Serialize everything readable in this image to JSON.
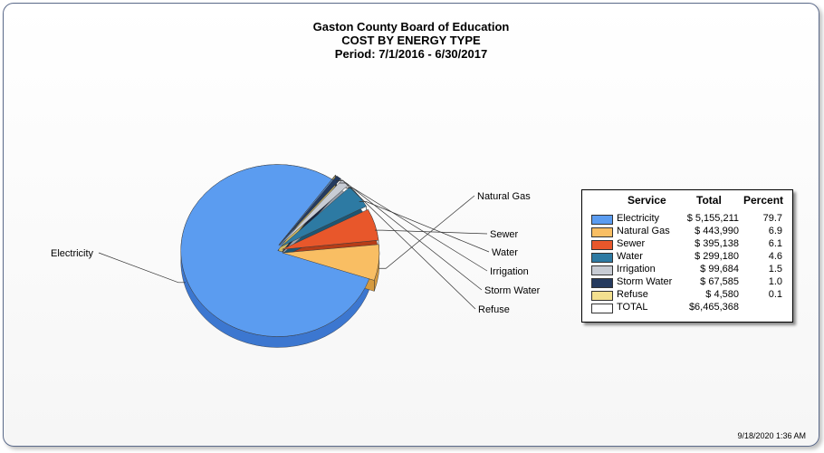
{
  "chart_data": {
    "type": "pie",
    "title": "Gaston County Board of Education",
    "subtitle": "COST BY ENERGY TYPE",
    "period": "Period: 7/1/2016 - 6/30/2017",
    "legend": {
      "placement": "right",
      "headers": {
        "service": "Service",
        "total": "Total",
        "percent": "Percent"
      }
    },
    "slices": [
      {
        "label": "Electricity",
        "total": "$ 5,155,211",
        "value": 5155211,
        "percent": "79.7",
        "color": "#5b9cf0",
        "side": "#3c77d0"
      },
      {
        "label": "Natural Gas",
        "total": "$ 443,990",
        "value": 443990,
        "percent": "6.9",
        "color": "#f9be63",
        "side": "#d59a3f"
      },
      {
        "label": "Sewer",
        "total": "$ 395,138",
        "value": 395138,
        "percent": "6.1",
        "color": "#e8572b",
        "side": "#b63d18"
      },
      {
        "label": "Water",
        "total": "$ 299,180",
        "value": 299180,
        "percent": "4.6",
        "color": "#2d7aa3",
        "side": "#1d5674"
      },
      {
        "label": "Irrigation",
        "total": "$ 99,684",
        "value": 99684,
        "percent": "1.5",
        "color": "#c8ccd4",
        "side": "#9aa0ab"
      },
      {
        "label": "Storm Water",
        "total": "$ 67,585",
        "value": 67585,
        "percent": "1.0",
        "color": "#253a5e",
        "side": "#16243e"
      },
      {
        "label": "Refuse",
        "total": "$ 4,580",
        "value": 4580,
        "percent": "0.1",
        "color": "#f3e08f",
        "side": "#cdb763"
      }
    ],
    "total_row": {
      "label": "TOTAL",
      "total": "$6,465,368",
      "color": "#ffffff"
    }
  },
  "timestamp": "9/18/2020 1:36 AM"
}
